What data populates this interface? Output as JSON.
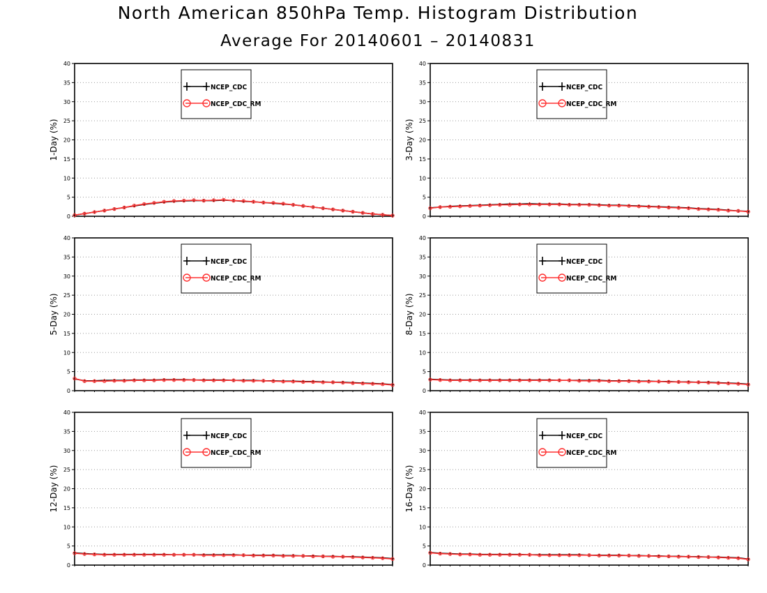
{
  "title": "North American 850hPa Temp. Histogram Distribution",
  "subtitle": "Average For 20140601 – 20140831",
  "colors": {
    "ncep_cdc": "#000000",
    "ncep_cdc_rm": "#ff3030",
    "grid": "#9a9a9a",
    "frame": "#000000"
  },
  "chart_data": [
    {
      "type": "line",
      "panel": "top-left",
      "ylabel": "1-Day (%)",
      "ylim": [
        0,
        40
      ],
      "yticks": [
        0,
        5,
        10,
        15,
        20,
        25,
        30,
        35,
        40
      ],
      "grid": "horizontal dotted",
      "legend": "top-center",
      "series": [
        {
          "name": "NCEP_CDC",
          "marker": "plus",
          "values": [
            0.3,
            0.7,
            1.1,
            1.5,
            1.9,
            2.3,
            2.7,
            3.1,
            3.4,
            3.7,
            3.9,
            4.0,
            4.1,
            4.1,
            4.1,
            4.2,
            4.1,
            3.9,
            3.8,
            3.6,
            3.4,
            3.2,
            3.0,
            2.7,
            2.4,
            2.1,
            1.8,
            1.5,
            1.2,
            0.9,
            0.6,
            0.4,
            0.2
          ]
        },
        {
          "name": "NCEP_CDC_RM",
          "marker": "circle",
          "values": [
            0.3,
            0.7,
            1.1,
            1.5,
            1.9,
            2.3,
            2.8,
            3.2,
            3.5,
            3.8,
            4.0,
            4.1,
            4.2,
            4.1,
            4.2,
            4.3,
            4.1,
            4.0,
            3.8,
            3.6,
            3.5,
            3.3,
            3.0,
            2.7,
            2.4,
            2.1,
            1.8,
            1.5,
            1.2,
            0.9,
            0.6,
            0.4,
            0.2
          ]
        }
      ]
    },
    {
      "type": "line",
      "panel": "top-right",
      "ylabel": "3-Day (%)",
      "ylim": [
        0,
        40
      ],
      "yticks": [
        0,
        5,
        10,
        15,
        20,
        25,
        30,
        35,
        40
      ],
      "grid": "horizontal dotted",
      "legend": "top-center",
      "series": [
        {
          "name": "NCEP_CDC",
          "marker": "plus",
          "values": [
            2.2,
            2.4,
            2.6,
            2.7,
            2.8,
            2.9,
            3.0,
            3.1,
            3.2,
            3.2,
            3.3,
            3.2,
            3.2,
            3.2,
            3.1,
            3.1,
            3.1,
            3.0,
            2.9,
            2.9,
            2.8,
            2.7,
            2.6,
            2.5,
            2.4,
            2.3,
            2.2,
            2.0,
            1.9,
            1.8,
            1.6,
            1.4,
            1.3
          ]
        },
        {
          "name": "NCEP_CDC_RM",
          "marker": "circle",
          "values": [
            2.1,
            2.4,
            2.5,
            2.6,
            2.7,
            2.8,
            2.9,
            3.0,
            3.0,
            3.1,
            3.1,
            3.1,
            3.1,
            3.1,
            3.0,
            3.0,
            3.0,
            2.9,
            2.8,
            2.8,
            2.7,
            2.6,
            2.5,
            2.4,
            2.3,
            2.2,
            2.1,
            1.9,
            1.8,
            1.7,
            1.5,
            1.4,
            1.2
          ]
        }
      ]
    },
    {
      "type": "line",
      "panel": "middle-left",
      "ylabel": "5-Day (%)",
      "ylim": [
        0,
        40
      ],
      "yticks": [
        0,
        5,
        10,
        15,
        20,
        25,
        30,
        35,
        40
      ],
      "grid": "horizontal dotted",
      "legend": "top-center",
      "series": [
        {
          "name": "NCEP_CDC",
          "marker": "plus",
          "values": [
            3.1,
            2.6,
            2.6,
            2.7,
            2.7,
            2.7,
            2.8,
            2.8,
            2.8,
            2.9,
            2.9,
            2.9,
            2.8,
            2.8,
            2.8,
            2.8,
            2.7,
            2.7,
            2.7,
            2.6,
            2.6,
            2.5,
            2.5,
            2.4,
            2.4,
            2.3,
            2.2,
            2.2,
            2.1,
            2.0,
            1.9,
            1.8,
            1.6
          ]
        },
        {
          "name": "NCEP_CDC_RM",
          "marker": "circle",
          "values": [
            3.2,
            2.5,
            2.5,
            2.5,
            2.6,
            2.6,
            2.7,
            2.7,
            2.7,
            2.8,
            2.8,
            2.8,
            2.8,
            2.7,
            2.7,
            2.7,
            2.7,
            2.6,
            2.6,
            2.6,
            2.5,
            2.4,
            2.4,
            2.3,
            2.3,
            2.2,
            2.2,
            2.1,
            2.0,
            1.9,
            1.8,
            1.7,
            1.5
          ]
        }
      ]
    },
    {
      "type": "line",
      "panel": "middle-right",
      "ylabel": "8-Day (%)",
      "ylim": [
        0,
        40
      ],
      "yticks": [
        0,
        5,
        10,
        15,
        20,
        25,
        30,
        35,
        40
      ],
      "grid": "horizontal dotted",
      "legend": "top-center",
      "series": [
        {
          "name": "NCEP_CDC",
          "marker": "plus",
          "values": [
            3.0,
            2.9,
            2.8,
            2.8,
            2.8,
            2.8,
            2.8,
            2.8,
            2.8,
            2.8,
            2.8,
            2.8,
            2.8,
            2.7,
            2.7,
            2.7,
            2.7,
            2.7,
            2.6,
            2.6,
            2.6,
            2.5,
            2.5,
            2.4,
            2.4,
            2.3,
            2.3,
            2.2,
            2.2,
            2.1,
            2.0,
            1.9,
            1.7
          ]
        },
        {
          "name": "NCEP_CDC_RM",
          "marker": "circle",
          "values": [
            2.9,
            2.8,
            2.7,
            2.7,
            2.7,
            2.7,
            2.7,
            2.7,
            2.7,
            2.7,
            2.7,
            2.7,
            2.7,
            2.7,
            2.7,
            2.6,
            2.6,
            2.6,
            2.5,
            2.5,
            2.5,
            2.4,
            2.4,
            2.4,
            2.3,
            2.3,
            2.2,
            2.2,
            2.1,
            2.0,
            1.9,
            1.8,
            1.6
          ]
        }
      ]
    },
    {
      "type": "line",
      "panel": "bottom-left",
      "ylabel": "12-Day (%)",
      "ylim": [
        0,
        40
      ],
      "yticks": [
        0,
        5,
        10,
        15,
        20,
        25,
        30,
        35,
        40
      ],
      "grid": "horizontal dotted",
      "legend": "top-center",
      "series": [
        {
          "name": "NCEP_CDC",
          "marker": "plus",
          "values": [
            3.2,
            3.0,
            2.9,
            2.8,
            2.8,
            2.8,
            2.8,
            2.8,
            2.8,
            2.8,
            2.7,
            2.7,
            2.7,
            2.7,
            2.7,
            2.7,
            2.7,
            2.6,
            2.6,
            2.6,
            2.6,
            2.5,
            2.5,
            2.4,
            2.4,
            2.3,
            2.3,
            2.2,
            2.2,
            2.1,
            2.0,
            1.9,
            1.7
          ]
        },
        {
          "name": "NCEP_CDC_RM",
          "marker": "circle",
          "values": [
            3.1,
            2.9,
            2.8,
            2.7,
            2.7,
            2.7,
            2.7,
            2.7,
            2.7,
            2.7,
            2.7,
            2.7,
            2.7,
            2.6,
            2.6,
            2.6,
            2.6,
            2.6,
            2.5,
            2.5,
            2.5,
            2.4,
            2.4,
            2.4,
            2.3,
            2.3,
            2.2,
            2.2,
            2.1,
            2.0,
            1.9,
            1.8,
            1.6
          ]
        }
      ]
    },
    {
      "type": "line",
      "panel": "bottom-right",
      "ylabel": "16-Day (%)",
      "ylim": [
        0,
        40
      ],
      "yticks": [
        0,
        5,
        10,
        15,
        20,
        25,
        30,
        35,
        40
      ],
      "grid": "horizontal dotted",
      "legend": "top-center",
      "series": [
        {
          "name": "NCEP_CDC",
          "marker": "plus",
          "values": [
            3.3,
            3.1,
            3.0,
            2.9,
            2.9,
            2.8,
            2.8,
            2.8,
            2.8,
            2.8,
            2.7,
            2.7,
            2.7,
            2.7,
            2.7,
            2.7,
            2.6,
            2.6,
            2.6,
            2.6,
            2.5,
            2.5,
            2.4,
            2.4,
            2.3,
            2.3,
            2.2,
            2.2,
            2.1,
            2.1,
            2.0,
            1.9,
            1.6
          ]
        },
        {
          "name": "NCEP_CDC_RM",
          "marker": "circle",
          "values": [
            3.2,
            3.0,
            2.9,
            2.8,
            2.8,
            2.7,
            2.7,
            2.7,
            2.7,
            2.7,
            2.7,
            2.6,
            2.6,
            2.6,
            2.6,
            2.6,
            2.6,
            2.5,
            2.5,
            2.5,
            2.5,
            2.4,
            2.4,
            2.3,
            2.3,
            2.2,
            2.2,
            2.1,
            2.1,
            2.0,
            1.9,
            1.8,
            1.5
          ]
        }
      ]
    }
  ]
}
